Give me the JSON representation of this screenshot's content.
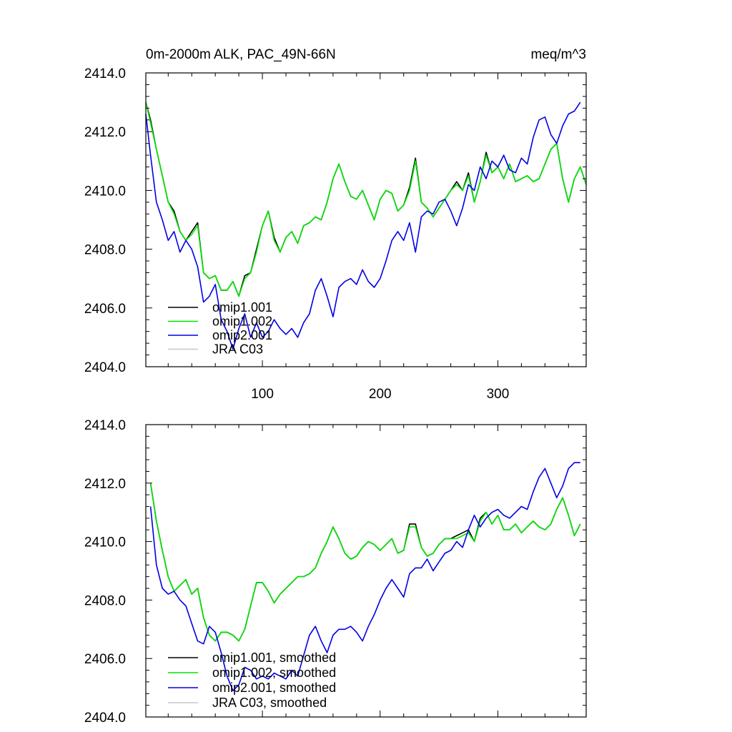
{
  "figure": {
    "title_left": "0m-2000m ALK, PAC_49N-66N",
    "title_right": "meq/m^3"
  },
  "chart_data": [
    {
      "type": "line",
      "title": "0m-2000m ALK, PAC_49N-66N",
      "units": "meq/m^3",
      "xlim": [
        1,
        375
      ],
      "ylim": [
        2404.0,
        2414.0
      ],
      "xticks": [
        100,
        200,
        300
      ],
      "xtick_labels": [
        "100",
        "200",
        "300"
      ],
      "yticks": [
        2404,
        2406,
        2408,
        2410,
        2412,
        2414
      ],
      "ytick_labels": [
        "2404.0",
        "2406.0",
        "2408.0",
        "2410.0",
        "2412.0",
        "2414.0"
      ],
      "grid": false,
      "legend_position": "bottom-left",
      "series": [
        {
          "name": "omip1.001",
          "color": "#000000",
          "x": [
            1,
            5,
            10,
            15,
            20,
            25,
            30,
            35,
            40,
            45,
            50,
            55,
            60,
            65,
            70,
            75,
            80,
            85,
            90,
            95,
            100,
            105,
            110,
            115,
            120,
            125,
            130,
            135,
            140,
            145,
            150,
            155,
            160,
            165,
            170,
            175,
            180,
            185,
            190,
            195,
            200,
            205,
            210,
            215,
            220,
            225,
            230,
            235,
            240,
            245,
            250,
            255,
            260,
            265,
            270,
            275,
            280,
            285,
            290,
            295,
            300,
            305,
            310,
            315,
            320,
            325,
            330,
            335,
            340,
            345,
            350,
            355,
            360,
            365,
            370,
            375
          ],
          "y": [
            2413.0,
            2412.4,
            2411.4,
            2410.5,
            2409.6,
            2409.3,
            2408.6,
            2408.3,
            2408.6,
            2408.9,
            2407.2,
            2407.0,
            2407.1,
            2406.6,
            2406.6,
            2406.9,
            2406.4,
            2407.1,
            2407.2,
            2408.0,
            2408.8,
            2409.3,
            2408.4,
            2407.9,
            2408.4,
            2408.6,
            2408.2,
            2408.8,
            2408.9,
            2409.1,
            2409.0,
            2409.6,
            2410.4,
            2410.9,
            2410.3,
            2409.8,
            2409.7,
            2410.0,
            2409.5,
            2409.0,
            2409.7,
            2410.0,
            2409.9,
            2409.3,
            2409.5,
            2410.1,
            2411.1,
            2409.6,
            2409.4,
            2409.1,
            2409.4,
            2409.7,
            2410.0,
            2410.3,
            2410.0,
            2410.6,
            2409.6,
            2410.3,
            2411.3,
            2410.6,
            2410.8,
            2410.4,
            2410.9,
            2410.3,
            2410.4,
            2410.5,
            2410.3,
            2410.4,
            2410.9,
            2411.4,
            2411.6,
            2410.4,
            2409.6,
            2410.4,
            2410.8,
            2410.2
          ]
        },
        {
          "name": "omip1.002",
          "color": "#00e600",
          "x": [
            1,
            5,
            10,
            15,
            20,
            25,
            30,
            35,
            40,
            45,
            50,
            55,
            60,
            65,
            70,
            75,
            80,
            85,
            90,
            95,
            100,
            105,
            110,
            115,
            120,
            125,
            130,
            135,
            140,
            145,
            150,
            155,
            160,
            165,
            170,
            175,
            180,
            185,
            190,
            195,
            200,
            205,
            210,
            215,
            220,
            225,
            230,
            235,
            240,
            245,
            250,
            255,
            260,
            265,
            270,
            275,
            280,
            285,
            290,
            295,
            300,
            305,
            310,
            315,
            320,
            325,
            330,
            335,
            340,
            345,
            350,
            355,
            360,
            365,
            370,
            375
          ],
          "y": [
            2413.0,
            2412.3,
            2411.4,
            2410.5,
            2409.6,
            2409.2,
            2408.6,
            2408.3,
            2408.5,
            2408.8,
            2407.2,
            2407.0,
            2407.1,
            2406.6,
            2406.6,
            2406.9,
            2406.4,
            2407.0,
            2407.2,
            2407.9,
            2408.8,
            2409.3,
            2408.3,
            2407.9,
            2408.4,
            2408.6,
            2408.2,
            2408.8,
            2408.9,
            2409.1,
            2409.0,
            2409.6,
            2410.4,
            2410.9,
            2410.3,
            2409.8,
            2409.7,
            2410.0,
            2409.5,
            2409.0,
            2409.7,
            2410.0,
            2409.9,
            2409.3,
            2409.5,
            2410.0,
            2411.0,
            2409.6,
            2409.4,
            2409.1,
            2409.4,
            2409.7,
            2410.0,
            2410.2,
            2410.0,
            2410.5,
            2409.6,
            2410.3,
            2411.2,
            2410.6,
            2410.8,
            2410.4,
            2410.9,
            2410.3,
            2410.4,
            2410.5,
            2410.3,
            2410.4,
            2410.9,
            2411.4,
            2411.6,
            2410.4,
            2409.6,
            2410.4,
            2410.8,
            2410.2
          ]
        },
        {
          "name": "omip2.001",
          "color": "#0000e6",
          "x": [
            1,
            5,
            10,
            15,
            20,
            25,
            30,
            35,
            40,
            45,
            50,
            55,
            60,
            65,
            70,
            75,
            80,
            85,
            90,
            95,
            100,
            105,
            110,
            115,
            120,
            125,
            130,
            135,
            140,
            145,
            150,
            155,
            160,
            165,
            170,
            175,
            180,
            185,
            190,
            195,
            200,
            205,
            210,
            215,
            220,
            225,
            230,
            235,
            240,
            245,
            250,
            255,
            260,
            265,
            270,
            275,
            280,
            285,
            290,
            295,
            300,
            305,
            310,
            315,
            320,
            325,
            330,
            335,
            340,
            345,
            350,
            355,
            360,
            365,
            370
          ],
          "y": [
            2412.6,
            2411.2,
            2409.6,
            2409.0,
            2408.3,
            2408.6,
            2407.9,
            2408.3,
            2408.0,
            2407.4,
            2406.2,
            2406.4,
            2406.8,
            2405.6,
            2405.2,
            2404.6,
            2405.3,
            2405.8,
            2405.0,
            2405.5,
            2405.0,
            2405.2,
            2405.6,
            2405.3,
            2405.1,
            2405.3,
            2405.0,
            2405.5,
            2405.8,
            2406.6,
            2407.0,
            2406.4,
            2405.7,
            2406.7,
            2406.9,
            2407.0,
            2406.8,
            2407.3,
            2406.9,
            2406.7,
            2407.0,
            2407.6,
            2408.3,
            2408.6,
            2408.3,
            2408.9,
            2407.9,
            2409.1,
            2409.3,
            2409.2,
            2409.6,
            2409.7,
            2409.3,
            2408.8,
            2409.4,
            2410.2,
            2410.0,
            2410.8,
            2410.4,
            2411.0,
            2410.8,
            2411.2,
            2410.7,
            2410.6,
            2411.1,
            2410.9,
            2411.8,
            2412.4,
            2412.5,
            2411.9,
            2411.6,
            2412.2,
            2412.6,
            2412.7,
            2413.0
          ]
        },
        {
          "name": "JRA C03",
          "color": "#c8c8c8",
          "x": [],
          "y": []
        }
      ]
    },
    {
      "type": "line",
      "title": "",
      "xlim": [
        1,
        375
      ],
      "ylim": [
        2404.0,
        2414.0
      ],
      "xticks": [
        100,
        200,
        300
      ],
      "xtick_labels": [],
      "yticks": [
        2404,
        2406,
        2408,
        2410,
        2412,
        2414
      ],
      "ytick_labels": [
        "2404.0",
        "2406.0",
        "2408.0",
        "2410.0",
        "2412.0",
        "2414.0"
      ],
      "grid": false,
      "legend_position": "bottom-left",
      "series": [
        {
          "name": "omip1.001, smoothed",
          "color": "#000000",
          "x": [
            5,
            10,
            15,
            20,
            25,
            30,
            35,
            40,
            45,
            50,
            55,
            60,
            65,
            70,
            75,
            80,
            85,
            90,
            95,
            100,
            105,
            110,
            115,
            120,
            125,
            130,
            135,
            140,
            145,
            150,
            155,
            160,
            165,
            170,
            175,
            180,
            185,
            190,
            195,
            200,
            205,
            210,
            215,
            220,
            225,
            230,
            235,
            240,
            245,
            250,
            255,
            260,
            265,
            270,
            275,
            280,
            285,
            290,
            295,
            300,
            305,
            310,
            315,
            320,
            325,
            330,
            335,
            340,
            345,
            350,
            355,
            360,
            365,
            370
          ],
          "y": [
            2412.0,
            2410.7,
            2409.7,
            2408.8,
            2408.3,
            2408.5,
            2408.7,
            2408.2,
            2408.4,
            2407.4,
            2406.8,
            2406.6,
            2406.9,
            2406.9,
            2406.8,
            2406.6,
            2407.0,
            2407.8,
            2408.6,
            2408.6,
            2408.3,
            2407.9,
            2408.2,
            2408.4,
            2408.6,
            2408.8,
            2408.8,
            2408.9,
            2409.1,
            2409.6,
            2410.0,
            2410.5,
            2410.1,
            2409.6,
            2409.4,
            2409.5,
            2409.8,
            2410.0,
            2409.9,
            2409.7,
            2409.9,
            2410.1,
            2409.6,
            2409.7,
            2410.6,
            2410.6,
            2409.8,
            2409.5,
            2409.6,
            2409.9,
            2410.1,
            2410.1,
            2410.2,
            2410.3,
            2410.4,
            2410.0,
            2410.8,
            2411.0,
            2410.6,
            2410.9,
            2410.4,
            2410.4,
            2410.6,
            2410.3,
            2410.5,
            2410.7,
            2410.5,
            2410.4,
            2410.6,
            2411.1,
            2411.5,
            2410.9,
            2410.2,
            2410.6
          ]
        },
        {
          "name": "omip1.002, smoothed",
          "color": "#00e600",
          "x": [
            5,
            10,
            15,
            20,
            25,
            30,
            35,
            40,
            45,
            50,
            55,
            60,
            65,
            70,
            75,
            80,
            85,
            90,
            95,
            100,
            105,
            110,
            115,
            120,
            125,
            130,
            135,
            140,
            145,
            150,
            155,
            160,
            165,
            170,
            175,
            180,
            185,
            190,
            195,
            200,
            205,
            210,
            215,
            220,
            225,
            230,
            235,
            240,
            245,
            250,
            255,
            260,
            265,
            270,
            275,
            280,
            285,
            290,
            295,
            300,
            305,
            310,
            315,
            320,
            325,
            330,
            335,
            340,
            345,
            350,
            355,
            360,
            365,
            370
          ],
          "y": [
            2412.0,
            2410.7,
            2409.7,
            2408.8,
            2408.3,
            2408.5,
            2408.7,
            2408.2,
            2408.4,
            2407.4,
            2406.8,
            2406.6,
            2406.9,
            2406.9,
            2406.8,
            2406.6,
            2407.0,
            2407.8,
            2408.6,
            2408.6,
            2408.3,
            2407.9,
            2408.2,
            2408.4,
            2408.6,
            2408.8,
            2408.8,
            2408.9,
            2409.1,
            2409.6,
            2410.0,
            2410.5,
            2410.1,
            2409.6,
            2409.4,
            2409.5,
            2409.8,
            2410.0,
            2409.9,
            2409.7,
            2409.9,
            2410.1,
            2409.6,
            2409.7,
            2410.5,
            2410.5,
            2409.8,
            2409.5,
            2409.6,
            2409.9,
            2410.1,
            2410.1,
            2410.1,
            2410.2,
            2410.3,
            2410.0,
            2410.7,
            2411.0,
            2410.6,
            2410.9,
            2410.4,
            2410.4,
            2410.6,
            2410.3,
            2410.5,
            2410.7,
            2410.5,
            2410.4,
            2410.6,
            2411.1,
            2411.5,
            2410.9,
            2410.2,
            2410.6
          ]
        },
        {
          "name": "omip2.001, smoothed",
          "color": "#0000e6",
          "x": [
            5,
            10,
            15,
            20,
            25,
            30,
            35,
            40,
            45,
            50,
            55,
            60,
            65,
            70,
            75,
            80,
            85,
            90,
            95,
            100,
            105,
            110,
            115,
            120,
            125,
            130,
            135,
            140,
            145,
            150,
            155,
            160,
            165,
            170,
            175,
            180,
            185,
            190,
            195,
            200,
            205,
            210,
            215,
            220,
            225,
            230,
            235,
            240,
            245,
            250,
            255,
            260,
            265,
            270,
            275,
            280,
            285,
            290,
            295,
            300,
            305,
            310,
            315,
            320,
            325,
            330,
            335,
            340,
            345,
            350,
            355,
            360,
            365,
            370
          ],
          "y": [
            2411.2,
            2409.2,
            2408.4,
            2408.2,
            2408.3,
            2408.0,
            2407.8,
            2407.2,
            2406.6,
            2406.5,
            2407.1,
            2406.9,
            2406.2,
            2405.4,
            2404.9,
            2405.1,
            2405.7,
            2405.6,
            2405.3,
            2405.4,
            2405.3,
            2405.5,
            2405.4,
            2405.3,
            2405.6,
            2405.4,
            2406.1,
            2406.8,
            2407.1,
            2406.6,
            2406.2,
            2406.8,
            2407.0,
            2407.0,
            2407.1,
            2406.9,
            2406.6,
            2407.1,
            2407.5,
            2408.0,
            2408.4,
            2408.7,
            2408.4,
            2408.1,
            2408.9,
            2409.1,
            2409.1,
            2409.4,
            2409.0,
            2409.3,
            2409.6,
            2409.7,
            2410.0,
            2409.8,
            2410.4,
            2410.9,
            2410.5,
            2410.8,
            2411.0,
            2411.1,
            2410.9,
            2410.8,
            2411.0,
            2411.2,
            2411.1,
            2411.7,
            2412.2,
            2412.5,
            2412.0,
            2411.5,
            2411.9,
            2412.5,
            2412.7,
            2412.7
          ]
        },
        {
          "name": "JRA C03, smoothed",
          "color": "#c8c8c8",
          "x": [],
          "y": []
        }
      ]
    }
  ]
}
